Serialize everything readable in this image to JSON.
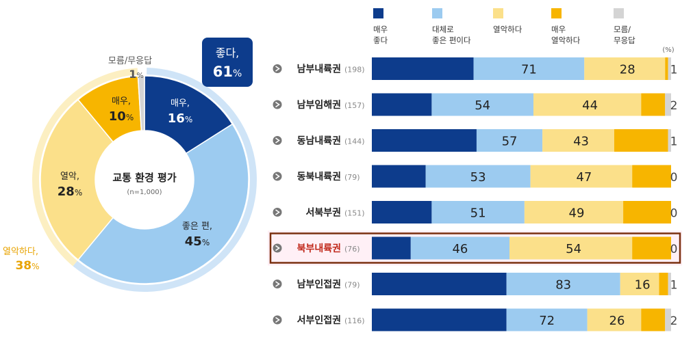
{
  "chart_data": [
    {
      "type": "pie",
      "center_title": "교통 환경 평가",
      "center_note": "(n=1,000)",
      "slices": [
        {
          "label": "매우,",
          "value": 16,
          "unit": "%",
          "color": "#0d3c8c"
        },
        {
          "label": "좋은 편,",
          "value": 45,
          "unit": "%",
          "color": "#9ccbf0"
        },
        {
          "label": "열악,",
          "value": 28,
          "unit": "%",
          "color": "#fbe08a"
        },
        {
          "label": "매우,",
          "value": 10,
          "unit": "%",
          "color": "#f7b500"
        },
        {
          "label": "모름/무응답",
          "value": 1,
          "unit": "%",
          "color": "#d4d4d4"
        }
      ],
      "group_good": {
        "label": "좋다,",
        "value": 61,
        "unit": "%",
        "color": "#0d3c8c",
        "ring_color": "#cfe4f7"
      },
      "group_bad": {
        "label": "열악하다,",
        "value": 38,
        "unit": "%",
        "color": "#e8a300",
        "ring_color": "#fcefc2"
      }
    },
    {
      "type": "bar",
      "stacked": true,
      "orientation": "horizontal",
      "unit_note": "(%)",
      "legend": [
        {
          "lines": [
            "매우",
            "좋다"
          ],
          "color": "#0d3c8c"
        },
        {
          "lines": [
            "대체로",
            "좋은 편이다"
          ],
          "color": "#9ccbf0"
        },
        {
          "lines": [
            "열악하다"
          ],
          "color": "#fbe08a"
        },
        {
          "lines": [
            "매우",
            "열악하다"
          ],
          "color": "#f7b500"
        },
        {
          "lines": [
            "모름/",
            "무응답"
          ],
          "color": "#d4d4d4"
        }
      ],
      "categories": [
        {
          "name": "남부내륙권",
          "n": "(198)"
        },
        {
          "name": "남부임해권",
          "n": "(157)"
        },
        {
          "name": "동남내륙권",
          "n": "(144)"
        },
        {
          "name": "동북내륙권",
          "n": "(79)"
        },
        {
          "name": "서북부권",
          "n": "(151)"
        },
        {
          "name": "북부내륙권",
          "n": "(76)",
          "highlight": true
        },
        {
          "name": "남부인접권",
          "n": "(79)"
        },
        {
          "name": "서부인접권",
          "n": "(116)"
        }
      ],
      "good_totals": [
        71,
        54,
        57,
        53,
        51,
        46,
        83,
        72
      ],
      "bad_totals": [
        28,
        44,
        43,
        47,
        49,
        54,
        16,
        26
      ],
      "unknown": [
        1,
        2,
        1,
        0,
        0,
        0,
        1,
        2
      ],
      "segments": [
        [
          34,
          37,
          27,
          1,
          1
        ],
        [
          20,
          34,
          36,
          8,
          2
        ],
        [
          35,
          22,
          24,
          18,
          1
        ],
        [
          18,
          35,
          34,
          13,
          0
        ],
        [
          20,
          31,
          33,
          16,
          0
        ],
        [
          13,
          33,
          41,
          13,
          0
        ],
        [
          45,
          38,
          13,
          3,
          1
        ],
        [
          45,
          27,
          18,
          8,
          2
        ]
      ],
      "highlight_color": "#7a3010",
      "highlight_text_color": "#c0281a"
    }
  ]
}
